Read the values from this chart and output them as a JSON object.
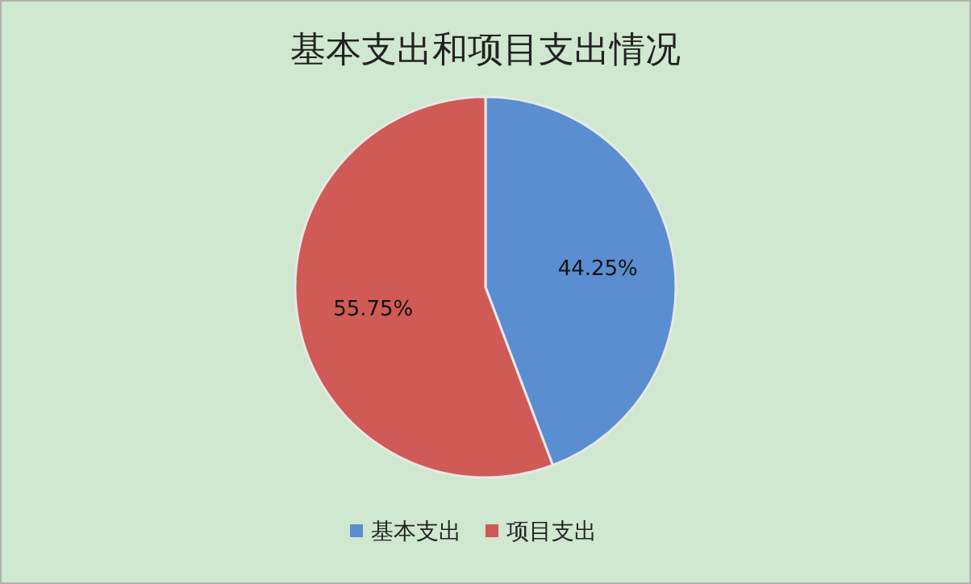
{
  "chart_data": {
    "type": "pie",
    "title": "基本支出和项目支出情况",
    "categories": [
      "基本支出",
      "项目支出"
    ],
    "values": [
      44.25,
      55.75
    ],
    "colors": [
      "#5b8ed0",
      "#d05a56"
    ],
    "value_labels": [
      "44.25%",
      "55.75%"
    ],
    "legend": "bottom"
  }
}
